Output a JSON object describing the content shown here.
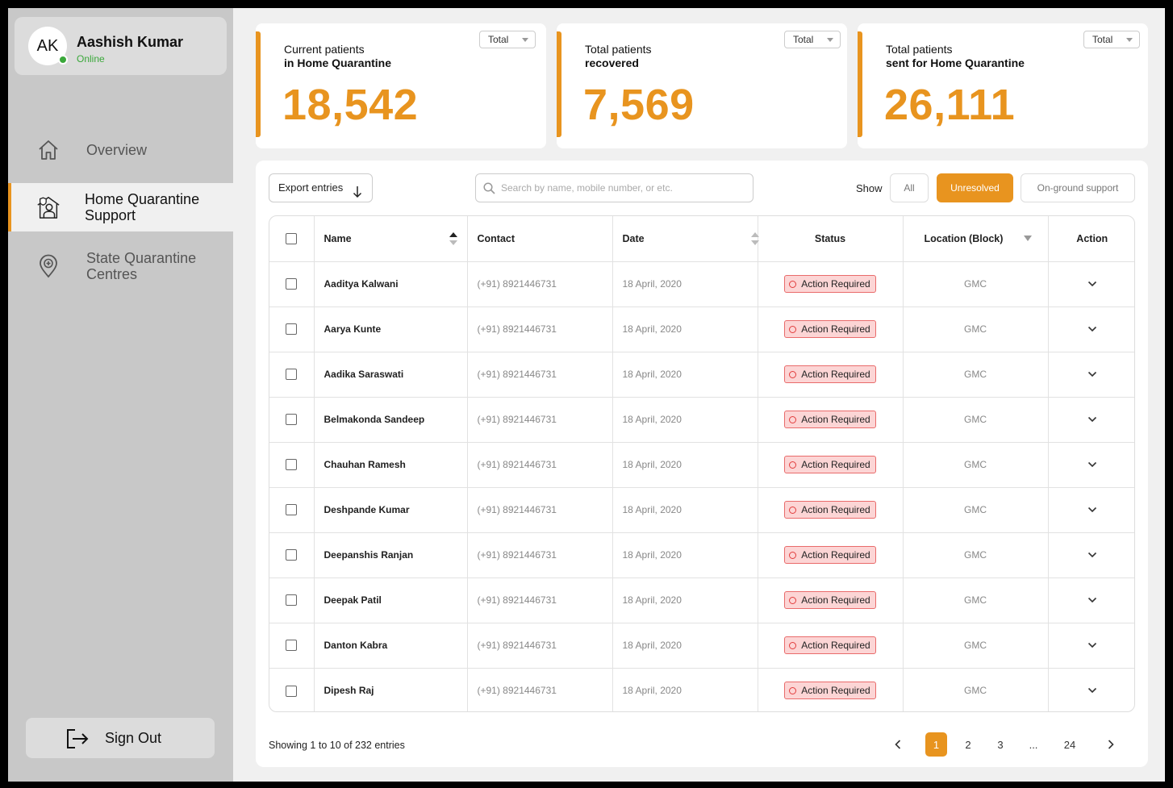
{
  "user": {
    "initials": "AK",
    "name": "Aashish Kumar",
    "status": "Online"
  },
  "nav": [
    {
      "label_line1": "Overview",
      "label_line2": ""
    },
    {
      "label_line1": "Home Quarantine",
      "label_line2": "Support"
    },
    {
      "label_line1": "State Quarantine",
      "label_line2": "Centres"
    }
  ],
  "signout_label": "Sign Out",
  "stats": [
    {
      "line1": "Current patients",
      "line2": "in Home Quarantine",
      "value": "18,542",
      "select": "Total"
    },
    {
      "line1": "Total patients",
      "line2": "recovered",
      "value": "7,569",
      "select": "Total"
    },
    {
      "line1": "Total patients",
      "line2": "sent for Home Quarantine",
      "value": "26,111",
      "select": "Total"
    }
  ],
  "toolbar": {
    "export_label": "Export entries",
    "search_placeholder": "Search by name, mobile number, or etc.",
    "show_label": "Show",
    "filters": [
      "All",
      "Unresolved",
      "On-ground support"
    ],
    "active_filter": "Unresolved"
  },
  "table": {
    "headers": {
      "name": "Name",
      "contact": "Contact",
      "date": "Date",
      "status": "Status",
      "location": "Location (Block)",
      "action": "Action"
    },
    "rows": [
      {
        "name": "Aaditya Kalwani",
        "contact": "(+91) 8921446731",
        "date": "18 April, 2020",
        "status": "Action Required",
        "location": "GMC"
      },
      {
        "name": "Aarya Kunte",
        "contact": "(+91) 8921446731",
        "date": "18 April, 2020",
        "status": "Action Required",
        "location": "GMC"
      },
      {
        "name": "Aadika Saraswati",
        "contact": "(+91) 8921446731",
        "date": "18 April, 2020",
        "status": "Action Required",
        "location": "GMC"
      },
      {
        "name": "Belmakonda Sandeep",
        "contact": "(+91) 8921446731",
        "date": "18 April, 2020",
        "status": "Action Required",
        "location": "GMC"
      },
      {
        "name": "Chauhan Ramesh",
        "contact": "(+91) 8921446731",
        "date": "18 April, 2020",
        "status": "Action Required",
        "location": "GMC"
      },
      {
        "name": "Deshpande Kumar",
        "contact": "(+91) 8921446731",
        "date": "18 April, 2020",
        "status": "Action Required",
        "location": "GMC"
      },
      {
        "name": "Deepanshis Ranjan",
        "contact": "(+91) 8921446731",
        "date": "18 April, 2020",
        "status": "Action Required",
        "location": "GMC"
      },
      {
        "name": "Deepak Patil",
        "contact": "(+91) 8921446731",
        "date": "18 April, 2020",
        "status": "Action Required",
        "location": "GMC"
      },
      {
        "name": "Danton Kabra",
        "contact": "(+91) 8921446731",
        "date": "18 April, 2020",
        "status": "Action Required",
        "location": "GMC"
      },
      {
        "name": "Dipesh Raj",
        "contact": "(+91) 8921446731",
        "date": "18 April, 2020",
        "status": "Action Required",
        "location": "GMC"
      }
    ]
  },
  "pagination": {
    "summary": "Showing 1 to 10 of 232 entries",
    "pages": [
      "1",
      "2",
      "3",
      "...",
      "24"
    ],
    "current": "1"
  },
  "colors": {
    "accent": "#e8941f",
    "online": "#3aa83a",
    "badge_bg": "#fcd5d5",
    "badge_border": "#e96b6b"
  }
}
